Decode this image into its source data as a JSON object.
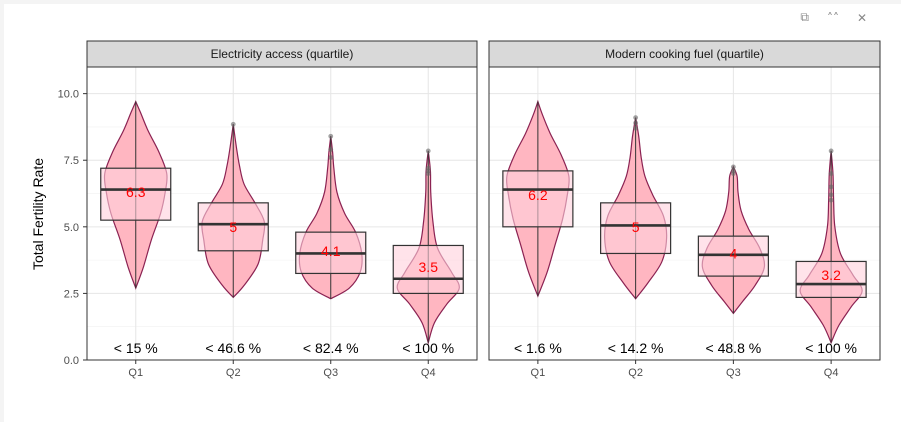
{
  "toolbar": {
    "icons": [
      "popout-icon",
      "collapse-icon",
      "close-icon"
    ],
    "glyphs": [
      "⧉",
      "˄˄",
      "✕"
    ]
  },
  "chart_data": {
    "type": "violin",
    "ylabel": "Total Fertility Rate",
    "ylim": [
      0,
      11
    ],
    "yticks": [
      0,
      2.5,
      5,
      7.5,
      10
    ],
    "ytick_labels": [
      "0.0",
      "2.5",
      "5.0",
      "7.5",
      "10.0"
    ],
    "categories": [
      "Q1",
      "Q2",
      "Q3",
      "Q4"
    ],
    "grid": true,
    "colors": {
      "violin_fill": "#ffb6c1",
      "violin_stroke": "#8b2252",
      "box_fill": "#ffd1dc",
      "label": "#ff0000",
      "strip": "#d9d9d9"
    },
    "panels": [
      {
        "strip": "Electricity access (quartile)",
        "groups": [
          {
            "cat": "Q1",
            "min": 2.7,
            "max": 9.7,
            "q1": 5.25,
            "median": 6.4,
            "q3": 7.2,
            "mean_label": "6.3",
            "mean": 6.3,
            "bottom_label": "< 15 %",
            "shape": [
              [
                2.7,
                0
              ],
              [
                3.5,
                0.25
              ],
              [
                4.5,
                0.5
              ],
              [
                5.5,
                0.8
              ],
              [
                6.3,
                0.95
              ],
              [
                7.0,
                1.0
              ],
              [
                7.8,
                0.75
              ],
              [
                8.6,
                0.4
              ],
              [
                9.3,
                0.15
              ],
              [
                9.7,
                0
              ]
            ],
            "outliers": []
          },
          {
            "cat": "Q2",
            "min": 2.35,
            "max": 8.85,
            "q1": 4.1,
            "median": 5.1,
            "q3": 5.9,
            "mean_label": "5",
            "mean": 5.0,
            "bottom_label": "< 46.6 %",
            "shape": [
              [
                2.35,
                0
              ],
              [
                2.8,
                0.35
              ],
              [
                3.6,
                0.8
              ],
              [
                4.5,
                0.95
              ],
              [
                5.2,
                1.0
              ],
              [
                5.9,
                0.7
              ],
              [
                6.6,
                0.35
              ],
              [
                7.3,
                0.2
              ],
              [
                8.0,
                0.1
              ],
              [
                8.85,
                0
              ]
            ],
            "outliers": [
              8.85
            ]
          },
          {
            "cat": "Q3",
            "min": 2.3,
            "max": 8.4,
            "q1": 3.25,
            "median": 4.0,
            "q3": 4.8,
            "mean_label": "4.1",
            "mean": 4.1,
            "bottom_label": "< 82.4 %",
            "shape": [
              [
                2.3,
                0
              ],
              [
                2.7,
                0.6
              ],
              [
                3.3,
                0.95
              ],
              [
                4.0,
                1.0
              ],
              [
                4.8,
                0.8
              ],
              [
                5.5,
                0.45
              ],
              [
                6.3,
                0.2
              ],
              [
                7.2,
                0.1
              ],
              [
                7.8,
                0.06
              ],
              [
                8.4,
                0
              ]
            ],
            "outliers": [
              7.6,
              7.9,
              8.4
            ]
          },
          {
            "cat": "Q4",
            "min": 0.65,
            "max": 7.85,
            "q1": 2.5,
            "median": 3.05,
            "q3": 4.3,
            "mean_label": "3.5",
            "mean": 3.5,
            "bottom_label": "< 100 %",
            "shape": [
              [
                0.65,
                0
              ],
              [
                1.4,
                0.2
              ],
              [
                2.1,
                0.6
              ],
              [
                2.7,
                1.0
              ],
              [
                3.3,
                0.75
              ],
              [
                4.2,
                0.3
              ],
              [
                5.2,
                0.15
              ],
              [
                6.3,
                0.08
              ],
              [
                7.1,
                0.07
              ],
              [
                7.85,
                0
              ]
            ],
            "outliers": [
              7.0,
              7.1,
              7.2,
              7.85
            ]
          }
        ]
      },
      {
        "strip": "Modern cooking fuel (quartile)",
        "groups": [
          {
            "cat": "Q1",
            "min": 2.4,
            "max": 9.7,
            "q1": 5.0,
            "median": 6.4,
            "q3": 7.1,
            "mean_label": "6.2",
            "mean": 6.2,
            "bottom_label": "< 1.6 %",
            "shape": [
              [
                2.4,
                0
              ],
              [
                3.3,
                0.3
              ],
              [
                4.3,
                0.55
              ],
              [
                5.3,
                0.8
              ],
              [
                6.2,
                0.95
              ],
              [
                6.9,
                1.0
              ],
              [
                7.7,
                0.75
              ],
              [
                8.5,
                0.4
              ],
              [
                9.2,
                0.15
              ],
              [
                9.7,
                0
              ]
            ],
            "outliers": []
          },
          {
            "cat": "Q2",
            "min": 2.3,
            "max": 9.1,
            "q1": 4.0,
            "median": 5.05,
            "q3": 5.9,
            "mean_label": "5",
            "mean": 5.0,
            "bottom_label": "< 14.2 %",
            "shape": [
              [
                2.3,
                0
              ],
              [
                2.9,
                0.4
              ],
              [
                3.7,
                0.85
              ],
              [
                4.6,
                1.0
              ],
              [
                5.4,
                0.9
              ],
              [
                6.2,
                0.55
              ],
              [
                6.9,
                0.3
              ],
              [
                7.6,
                0.18
              ],
              [
                8.4,
                0.1
              ],
              [
                9.1,
                0
              ]
            ],
            "outliers": [
              8.7,
              8.9,
              9.1
            ]
          },
          {
            "cat": "Q3",
            "min": 1.75,
            "max": 7.25,
            "q1": 3.15,
            "median": 3.95,
            "q3": 4.65,
            "mean_label": "4",
            "mean": 4.0,
            "bottom_label": "< 48.8 %",
            "shape": [
              [
                1.75,
                0
              ],
              [
                2.2,
                0.3
              ],
              [
                2.8,
                0.7
              ],
              [
                3.5,
                1.0
              ],
              [
                4.2,
                0.85
              ],
              [
                4.9,
                0.5
              ],
              [
                5.6,
                0.25
              ],
              [
                6.3,
                0.15
              ],
              [
                6.9,
                0.12
              ],
              [
                7.25,
                0
              ]
            ],
            "outliers": [
              7.0,
              7.1,
              7.25
            ]
          },
          {
            "cat": "Q4",
            "min": 0.65,
            "max": 7.85,
            "q1": 2.35,
            "median": 2.85,
            "q3": 3.7,
            "mean_label": "3.2",
            "mean": 3.2,
            "bottom_label": "< 100 %",
            "shape": [
              [
                0.65,
                0
              ],
              [
                1.3,
                0.25
              ],
              [
                2.0,
                0.65
              ],
              [
                2.6,
                1.0
              ],
              [
                3.2,
                0.7
              ],
              [
                4.0,
                0.3
              ],
              [
                5.0,
                0.12
              ],
              [
                6.0,
                0.08
              ],
              [
                7.0,
                0.06
              ],
              [
                7.85,
                0
              ]
            ],
            "outliers": [
              6.0,
              6.2,
              6.5,
              7.0,
              7.85
            ]
          }
        ]
      }
    ]
  }
}
